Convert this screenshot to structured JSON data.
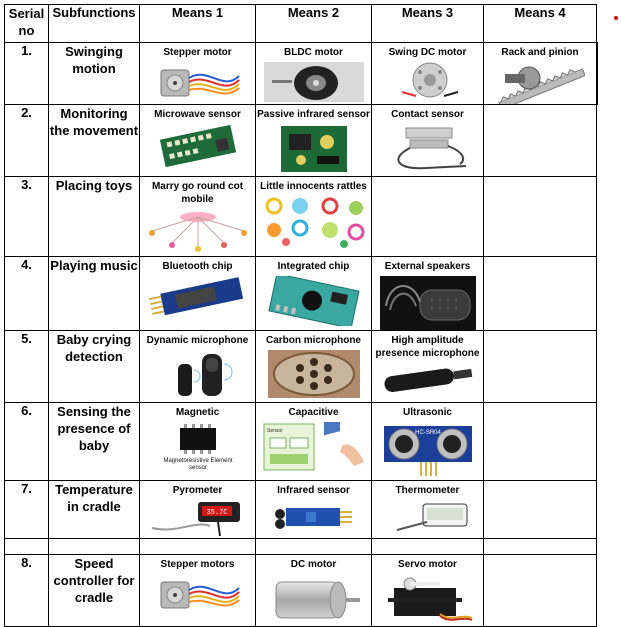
{
  "headers": [
    "Serial no",
    "Subfunctions",
    "Means 1",
    "Means 2",
    "Means 3",
    "Means 4"
  ],
  "rows": [
    {
      "serial": "1.",
      "sub": "Swinging motion",
      "means": [
        {
          "label": "Stepper motor",
          "icon": "stepper-motor-icon"
        },
        {
          "label": "BLDC motor",
          "icon": "bldc-motor-icon"
        },
        {
          "label": "Swing DC motor",
          "icon": "swing-dc-motor-icon"
        },
        {
          "label": "Rack and pinion",
          "icon": "rack-and-pinion-icon"
        }
      ]
    },
    {
      "serial": "2.",
      "sub": "Monitoring the movement",
      "means": [
        {
          "label": "Microwave sensor",
          "icon": "microwave-sensor-icon"
        },
        {
          "label": "Passive infrared sensor",
          "icon": "pir-sensor-icon"
        },
        {
          "label": "Contact sensor",
          "icon": "contact-sensor-icon"
        }
      ]
    },
    {
      "serial": "3.",
      "sub": "Placing toys",
      "means": [
        {
          "label": "Marry go round cot mobile",
          "icon": "cot-mobile-icon"
        },
        {
          "label": "Little innocents rattles",
          "icon": "rattles-icon"
        }
      ]
    },
    {
      "serial": "4.",
      "sub": "Playing music",
      "means": [
        {
          "label": "Bluetooth chip",
          "icon": "bluetooth-chip-icon"
        },
        {
          "label": "Integrated chip",
          "icon": "integrated-chip-icon"
        },
        {
          "label": "External speakers",
          "icon": "speaker-icon"
        }
      ]
    },
    {
      "serial": "5.",
      "sub": "Baby crying detection",
      "means": [
        {
          "label": "Dynamic microphone",
          "icon": "dynamic-microphone-icon"
        },
        {
          "label": "Carbon microphone",
          "icon": "carbon-microphone-icon"
        },
        {
          "label": "High amplitude presence microphone",
          "icon": "presence-microphone-icon"
        }
      ]
    },
    {
      "serial": "6.",
      "sub": "Sensing the presence of baby",
      "means": [
        {
          "label": "Magnetic",
          "icon": "magnetic-sensor-icon"
        },
        {
          "label": "Capacitive",
          "icon": "capacitive-sensor-icon"
        },
        {
          "label": "Ultrasonic",
          "icon": "ultrasonic-sensor-icon"
        }
      ]
    },
    {
      "serial": "7.",
      "sub": "Temperature in cradle",
      "means": [
        {
          "label": "Pyrometer",
          "icon": "pyrometer-icon"
        },
        {
          "label": "Infrared sensor",
          "icon": "infrared-sensor-icon"
        },
        {
          "label": "Thermometer",
          "icon": "thermometer-icon"
        }
      ]
    },
    {
      "serial": "8.",
      "sub": "Speed controller for cradle",
      "means": [
        {
          "label": "Stepper motors",
          "icon": "stepper-motor-icon"
        },
        {
          "label": "DC motor",
          "icon": "dc-motor-icon"
        },
        {
          "label": "Servo motor",
          "icon": "servo-motor-icon"
        }
      ]
    }
  ],
  "image_captions": {
    "magnetic": "Magnetoresistive Element sensor",
    "pyrometer_display": "35.7C",
    "ultrasonic_chip": "HC-SR04",
    "capacitive_sensor": "Sensor"
  }
}
